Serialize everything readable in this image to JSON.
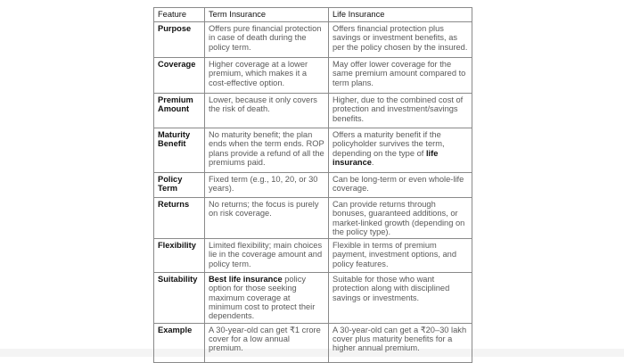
{
  "headers": [
    "Feature",
    "Term Insurance",
    "Life Insurance"
  ],
  "rows": [
    {
      "feature": "Purpose",
      "term": "Offers pure financial protection in case of death during the policy term.",
      "life": "Offers financial protection plus savings or investment benefits, as per the policy chosen by the insured."
    },
    {
      "feature": "Coverage",
      "term": "Higher coverage at a lower premium, which makes it a cost-effective option.",
      "life": "May offer lower coverage for the same premium amount compared to term plans."
    },
    {
      "feature": "Premium Amount",
      "term": "Lower, because it only covers the risk of death.",
      "life": "Higher, due to the combined cost of protection and investment/savings benefits."
    },
    {
      "feature": "Maturity Benefit",
      "term": "No maturity benefit; the plan ends when the term ends. ROP plans provide a refund of all the premiums paid.",
      "life_pre": "Offers a maturity benefit if the policyholder survives the term, depending on the type of ",
      "life_bold": "life insurance",
      "life_post": "."
    },
    {
      "feature": "Policy Term",
      "term": "Fixed term (e.g., 10, 20, or 30 years).",
      "life": "Can be long-term or even whole-life coverage."
    },
    {
      "feature": "Returns",
      "term": "No returns; the focus is purely on risk coverage.",
      "life": "Can provide returns through bonuses, guaranteed additions, or market-linked growth (depending on the policy type)."
    },
    {
      "feature": "Flexibility",
      "term": "Limited flexibility; main choices lie in the coverage amount and policy term.",
      "life": "Flexible in terms of premium payment, investment options, and policy features."
    },
    {
      "feature": "Suitability",
      "term_bold": "Best life insurance",
      "term_post": " policy option for those seeking maximum coverage at minimum cost to protect their dependents.",
      "life": "Suitable for those who want protection along with disciplined savings or investments."
    },
    {
      "feature": "Example",
      "term": "A 30-year-old can get ₹1 crore cover for a low annual premium.",
      "life": "A 30-year-old can get a ₹20–30 lakh cover plus maturity benefits for a higher annual premium."
    }
  ]
}
